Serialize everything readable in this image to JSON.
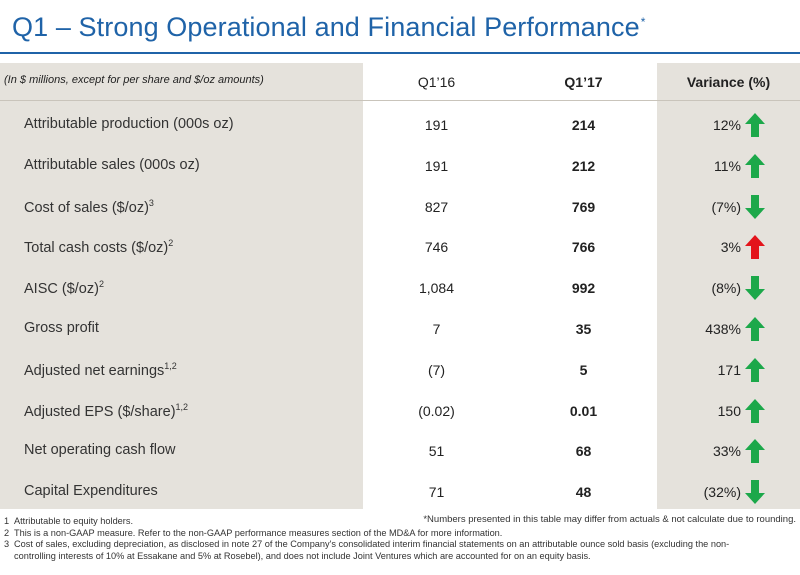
{
  "title": {
    "text": "Q1 – Strong Operational and Financial Performance",
    "marker": "*"
  },
  "table": {
    "note": "(In $ millions, except for per share and $/oz amounts)",
    "col_q16": "Q1’16",
    "col_q17": "Q1’17",
    "col_variance": "Variance (%)",
    "rows": [
      {
        "label": "Attributable production (000s oz)",
        "sup": "",
        "q16": "191",
        "q17": "214",
        "variance": "12%",
        "arrow": "up",
        "color": "#1ca84a"
      },
      {
        "label": "Attributable sales (000s oz)",
        "sup": "",
        "q16": "191",
        "q17": "212",
        "variance": "11%",
        "arrow": "up",
        "color": "#1ca84a"
      },
      {
        "label": "Cost of sales ($/oz)",
        "sup": "3",
        "q16": "827",
        "q17": "769",
        "variance": "(7%)",
        "arrow": "down",
        "color": "#1ca84a"
      },
      {
        "label": "Total cash costs ($/oz)",
        "sup": "2",
        "q16": "746",
        "q17": "766",
        "variance": "3%",
        "arrow": "up",
        "color": "#e3141b"
      },
      {
        "label": "AISC ($/oz)",
        "sup": "2",
        "q16": "1,084",
        "q17": "992",
        "variance": "(8%)",
        "arrow": "down",
        "color": "#1ca84a"
      },
      {
        "label": "Gross profit",
        "sup": "",
        "q16": "7",
        "q17": "35",
        "variance": "438%",
        "arrow": "up",
        "color": "#1ca84a"
      },
      {
        "label": "Adjusted net earnings",
        "sup": "1,2",
        "q16": "(7)",
        "q17": "5",
        "variance": "171",
        "arrow": "up",
        "color": "#1ca84a"
      },
      {
        "label": "Adjusted EPS ($/share)",
        "sup": "1,2",
        "q16": "(0.02)",
        "q17": "0.01",
        "variance": "150",
        "arrow": "up",
        "color": "#1ca84a"
      },
      {
        "label": "Net operating cash flow",
        "sup": "",
        "q16": "51",
        "q17": "68",
        "variance": "33%",
        "arrow": "up",
        "color": "#1ca84a"
      },
      {
        "label": "Capital Expenditures",
        "sup": "",
        "q16": "71",
        "q17": "48",
        "variance": "(32%)",
        "arrow": "down",
        "color": "#1ca84a"
      }
    ]
  },
  "footnotes": {
    "disclaimer": "*Numbers presented in this table may differ from actuals & not calculate due to rounding.",
    "items": [
      {
        "num": "1",
        "text": "Attributable to equity holders."
      },
      {
        "num": "2",
        "text": "This is a non-GAAP measure. Refer to the non-GAAP performance measures section of the MD&A for more information."
      },
      {
        "num": "3",
        "text": "Cost of sales, excluding depreciation, as disclosed in note 27 of the Company's consolidated interim financial statements on an attributable ounce sold basis (excluding the non-"
      },
      {
        "num": "",
        "text": "controlling interests of 10% at Essakane and 5% at Rosebel), and does not include Joint Ventures which are accounted for on an equity basis."
      }
    ]
  }
}
